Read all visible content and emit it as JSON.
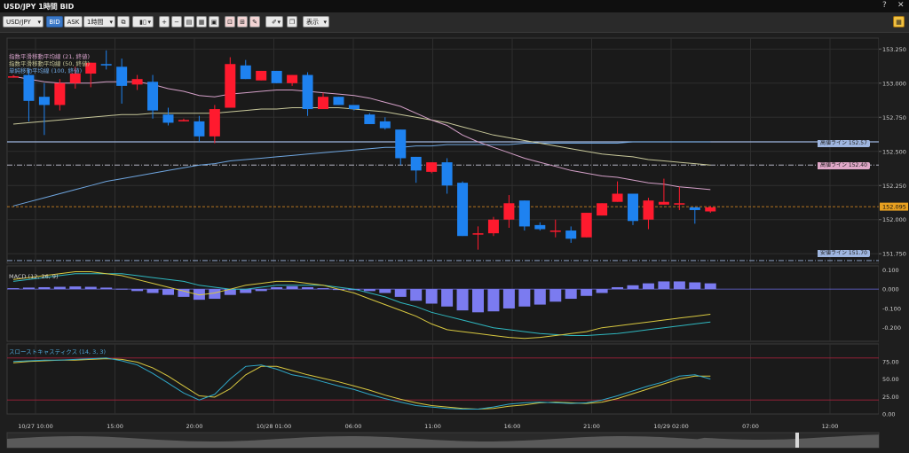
{
  "window": {
    "title": "USD/JPY 1時間 BID",
    "help_icon": "?",
    "restore_icon": "▭",
    "close_icon": "✕"
  },
  "toolbar": {
    "symbol": "USD/JPY",
    "bid_label": "BID",
    "ask_label": "ASK",
    "timeframe": "1時間",
    "display_label": "表示"
  },
  "main": {
    "legend": [
      {
        "text": "指数平滑移動平均線 (21, 終値)",
        "color": "#d4a0c8"
      },
      {
        "text": "指数平滑移動平均線 (50, 終値)",
        "color": "#c8c89a"
      },
      {
        "text": "単純移動平均線 (100, 終値)",
        "color": "#6fa6e0"
      }
    ],
    "y_ticks": [
      "153.250",
      "153.000",
      "152.750",
      "152.500",
      "152.250",
      "152.000",
      "151.750"
    ],
    "current_price": "152.095",
    "price_tags": [
      {
        "text": "高値ライン 152.57",
        "color": "#9fb6e0"
      },
      {
        "text": "高値ライン 152.40",
        "color": "#e0a8c8"
      },
      {
        "text": "安値ライン 151.70",
        "color": "#9fb6e0"
      }
    ]
  },
  "macd": {
    "label": "MACD (12, 26, 9)",
    "y_ticks": [
      "0.100",
      "0.000",
      "-0.100",
      "-0.200"
    ]
  },
  "stoch": {
    "label": "スローストキャスティクス (14, 3, 3)",
    "y_ticks": [
      "75.00",
      "50.00",
      "25.00",
      "0.00"
    ]
  },
  "x_ticks": [
    "10/27 10:00",
    "15:00",
    "20:00",
    "10/28 01:00",
    "06:00",
    "11:00",
    "16:00",
    "21:00",
    "10/29 02:00",
    "07:00",
    "12:00"
  ],
  "chart_data": {
    "type": "candlestick",
    "instrument": "USD/JPY",
    "timeframe": "1時間",
    "price_ylim": [
      151.68,
      153.33
    ],
    "candles": [
      {
        "o": 153.05,
        "h": 153.06,
        "l": 153.04,
        "c": 153.05
      },
      {
        "o": 153.06,
        "h": 153.1,
        "l": 152.72,
        "c": 152.87
      },
      {
        "o": 152.9,
        "h": 153.0,
        "l": 152.62,
        "c": 152.84
      },
      {
        "o": 152.84,
        "h": 153.03,
        "l": 152.8,
        "c": 153.0
      },
      {
        "o": 153.0,
        "h": 153.12,
        "l": 152.96,
        "c": 153.07
      },
      {
        "o": 153.07,
        "h": 153.15,
        "l": 152.97,
        "c": 153.15
      },
      {
        "o": 153.14,
        "h": 153.24,
        "l": 153.1,
        "c": 153.13
      },
      {
        "o": 153.12,
        "h": 153.18,
        "l": 152.85,
        "c": 152.98
      },
      {
        "o": 152.99,
        "h": 153.06,
        "l": 152.95,
        "c": 153.03
      },
      {
        "o": 153.01,
        "h": 153.06,
        "l": 152.74,
        "c": 152.8
      },
      {
        "o": 152.77,
        "h": 152.82,
        "l": 152.69,
        "c": 152.71
      },
      {
        "o": 152.72,
        "h": 152.74,
        "l": 152.72,
        "c": 152.73
      },
      {
        "o": 152.72,
        "h": 152.76,
        "l": 152.57,
        "c": 152.61
      },
      {
        "o": 152.61,
        "h": 152.84,
        "l": 152.56,
        "c": 152.81
      },
      {
        "o": 152.82,
        "h": 153.19,
        "l": 152.82,
        "c": 153.14
      },
      {
        "o": 153.13,
        "h": 153.17,
        "l": 153.03,
        "c": 153.03
      },
      {
        "o": 153.02,
        "h": 153.09,
        "l": 153.02,
        "c": 153.09
      },
      {
        "o": 153.09,
        "h": 153.09,
        "l": 153.0,
        "c": 153.0
      },
      {
        "o": 153.0,
        "h": 153.06,
        "l": 152.98,
        "c": 153.06
      },
      {
        "o": 153.06,
        "h": 153.08,
        "l": 152.76,
        "c": 152.81
      },
      {
        "o": 152.81,
        "h": 152.93,
        "l": 152.81,
        "c": 152.9
      },
      {
        "o": 152.9,
        "h": 152.9,
        "l": 152.84,
        "c": 152.84
      },
      {
        "o": 152.84,
        "h": 152.84,
        "l": 152.8,
        "c": 152.81
      },
      {
        "o": 152.77,
        "h": 152.78,
        "l": 152.7,
        "c": 152.7
      },
      {
        "o": 152.72,
        "h": 152.75,
        "l": 152.66,
        "c": 152.67
      },
      {
        "o": 152.66,
        "h": 152.66,
        "l": 152.4,
        "c": 152.45
      },
      {
        "o": 152.46,
        "h": 152.46,
        "l": 152.27,
        "c": 152.36
      },
      {
        "o": 152.35,
        "h": 152.42,
        "l": 152.34,
        "c": 152.42
      },
      {
        "o": 152.42,
        "h": 152.45,
        "l": 152.19,
        "c": 152.25
      },
      {
        "o": 152.27,
        "h": 152.28,
        "l": 151.88,
        "c": 151.88
      },
      {
        "o": 151.89,
        "h": 151.95,
        "l": 151.78,
        "c": 151.9
      },
      {
        "o": 151.9,
        "h": 152.02,
        "l": 151.88,
        "c": 152.0
      },
      {
        "o": 152.0,
        "h": 152.18,
        "l": 151.94,
        "c": 152.12
      },
      {
        "o": 152.14,
        "h": 152.14,
        "l": 151.92,
        "c": 151.95
      },
      {
        "o": 151.96,
        "h": 151.98,
        "l": 151.92,
        "c": 151.93
      },
      {
        "o": 151.92,
        "h": 152.0,
        "l": 151.87,
        "c": 151.92
      },
      {
        "o": 151.92,
        "h": 151.95,
        "l": 151.83,
        "c": 151.86
      },
      {
        "o": 151.87,
        "h": 152.05,
        "l": 151.87,
        "c": 152.05
      },
      {
        "o": 152.03,
        "h": 152.12,
        "l": 152.03,
        "c": 152.12
      },
      {
        "o": 152.13,
        "h": 152.28,
        "l": 152.13,
        "c": 152.19
      },
      {
        "o": 152.19,
        "h": 152.19,
        "l": 151.96,
        "c": 151.99
      },
      {
        "o": 152.0,
        "h": 152.16,
        "l": 151.93,
        "c": 152.14
      },
      {
        "o": 152.11,
        "h": 152.3,
        "l": 152.11,
        "c": 152.13
      },
      {
        "o": 152.11,
        "h": 152.24,
        "l": 152.07,
        "c": 152.12
      },
      {
        "o": 152.09,
        "h": 152.09,
        "l": 151.97,
        "c": 152.07
      },
      {
        "o": 152.06,
        "h": 152.1,
        "l": 152.05,
        "c": 152.09
      }
    ],
    "ema21": [
      153.05,
      153.03,
      153.01,
      153.0,
      153.0,
      153.0,
      153.01,
      153.01,
      153.01,
      152.99,
      152.96,
      152.94,
      152.91,
      152.9,
      152.92,
      152.93,
      152.94,
      152.95,
      152.95,
      152.94,
      152.93,
      152.92,
      152.91,
      152.89,
      152.86,
      152.83,
      152.78,
      152.73,
      152.69,
      152.62,
      152.57,
      152.53,
      152.49,
      152.45,
      152.42,
      152.39,
      152.36,
      152.34,
      152.32,
      152.31,
      152.29,
      152.27,
      152.26,
      152.24,
      152.23,
      152.22
    ],
    "ema50": [
      152.7,
      152.71,
      152.72,
      152.73,
      152.74,
      152.75,
      152.76,
      152.77,
      152.77,
      152.78,
      152.78,
      152.78,
      152.78,
      152.78,
      152.79,
      152.8,
      152.81,
      152.81,
      152.82,
      152.82,
      152.82,
      152.82,
      152.81,
      152.8,
      152.79,
      152.77,
      152.75,
      152.73,
      152.71,
      152.68,
      152.65,
      152.62,
      152.6,
      152.58,
      152.56,
      152.54,
      152.52,
      152.5,
      152.48,
      152.47,
      152.46,
      152.44,
      152.43,
      152.42,
      152.41,
      152.4
    ],
    "sma100": [
      152.1,
      152.13,
      152.16,
      152.19,
      152.22,
      152.25,
      152.28,
      152.3,
      152.32,
      152.34,
      152.36,
      152.38,
      152.4,
      152.41,
      152.43,
      152.44,
      152.45,
      152.46,
      152.47,
      152.48,
      152.49,
      152.5,
      152.51,
      152.52,
      152.53,
      152.53,
      152.54,
      152.54,
      152.55,
      152.55,
      152.55,
      152.55,
      152.55,
      152.56,
      152.56,
      152.56,
      152.56,
      152.56,
      152.56,
      152.56,
      152.57,
      152.57,
      152.57,
      152.57,
      152.57,
      152.57
    ],
    "horizontal_lines": [
      {
        "name": "高値ライン 152.57",
        "value": 152.57,
        "style": "solid",
        "color": "#9fb6e0"
      },
      {
        "name": "高値ライン 152.40",
        "value": 152.4,
        "style": "dashdot",
        "color": "#c8c8d8"
      },
      {
        "name": "current",
        "value": 152.095,
        "style": "dashed",
        "color": "#e89020"
      },
      {
        "name": "安値ライン 151.70",
        "value": 151.7,
        "style": "dashdot",
        "color": "#9fb6e0"
      }
    ],
    "macd_ylim": [
      -0.27,
      0.12
    ],
    "macd_hist": [
      0.005,
      0.008,
      0.01,
      0.012,
      0.014,
      0.012,
      0.008,
      0.002,
      -0.01,
      -0.02,
      -0.03,
      -0.04,
      -0.055,
      -0.05,
      -0.03,
      -0.02,
      -0.01,
      0.01,
      0.015,
      0.01,
      0.005,
      0.0,
      -0.005,
      -0.01,
      -0.02,
      -0.04,
      -0.06,
      -0.075,
      -0.09,
      -0.11,
      -0.12,
      -0.115,
      -0.1,
      -0.09,
      -0.08,
      -0.065,
      -0.05,
      -0.035,
      -0.02,
      0.01,
      0.02,
      0.03,
      0.04,
      0.04,
      0.035,
      0.03
    ],
    "macd_line": [
      0.05,
      0.06,
      0.07,
      0.08,
      0.09,
      0.09,
      0.08,
      0.07,
      0.05,
      0.03,
      0.01,
      -0.01,
      -0.03,
      -0.02,
      0.0,
      0.02,
      0.03,
      0.04,
      0.04,
      0.03,
      0.02,
      0.0,
      -0.02,
      -0.05,
      -0.08,
      -0.11,
      -0.14,
      -0.18,
      -0.21,
      -0.22,
      -0.23,
      -0.24,
      -0.25,
      -0.255,
      -0.25,
      -0.24,
      -0.23,
      -0.22,
      -0.2,
      -0.19,
      -0.18,
      -0.17,
      -0.16,
      -0.15,
      -0.14,
      -0.13
    ],
    "macd_signal": [
      0.04,
      0.05,
      0.06,
      0.07,
      0.08,
      0.08,
      0.08,
      0.08,
      0.07,
      0.06,
      0.05,
      0.04,
      0.02,
      0.01,
      0.0,
      0.0,
      0.01,
      0.02,
      0.02,
      0.02,
      0.02,
      0.01,
      0.0,
      -0.02,
      -0.04,
      -0.07,
      -0.09,
      -0.12,
      -0.14,
      -0.16,
      -0.18,
      -0.2,
      -0.21,
      -0.22,
      -0.23,
      -0.235,
      -0.24,
      -0.24,
      -0.235,
      -0.23,
      -0.22,
      -0.21,
      -0.2,
      -0.19,
      -0.18,
      -0.17
    ],
    "stoch_ylim": [
      0,
      100
    ],
    "stoch_k": [
      75,
      76,
      77,
      77,
      78,
      79,
      80,
      76,
      70,
      58,
      44,
      30,
      20,
      28,
      50,
      68,
      70,
      64,
      56,
      52,
      46,
      40,
      35,
      28,
      22,
      17,
      12,
      10,
      8,
      7,
      7,
      10,
      14,
      16,
      17,
      16,
      15,
      16,
      20,
      26,
      33,
      40,
      46,
      54,
      56,
      50
    ],
    "stoch_d": [
      73,
      75,
      76,
      77,
      77,
      78,
      79,
      78,
      74,
      66,
      54,
      40,
      26,
      24,
      36,
      56,
      68,
      68,
      62,
      56,
      51,
      46,
      40,
      34,
      27,
      21,
      16,
      12,
      10,
      8,
      7,
      8,
      11,
      13,
      16,
      17,
      16,
      15,
      17,
      22,
      29,
      36,
      43,
      50,
      54,
      54
    ],
    "stoch_levels": [
      80,
      20
    ]
  }
}
